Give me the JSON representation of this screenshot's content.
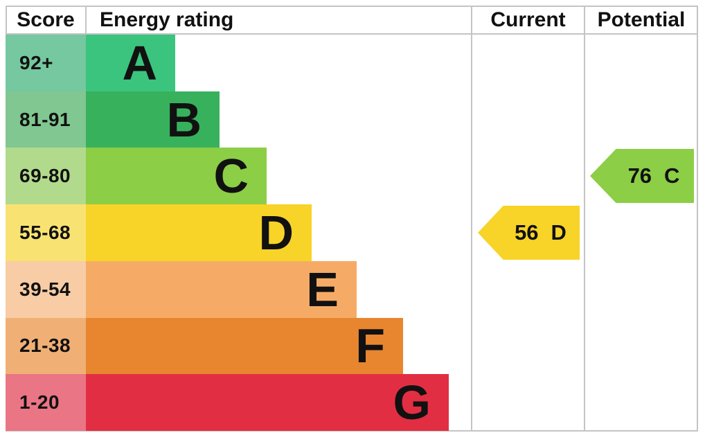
{
  "header": {
    "score_label": "Score",
    "energy_rating_label": "Energy rating",
    "current_label": "Current",
    "potential_label": "Potential"
  },
  "colors": {
    "grid_line": "#c4c4c4",
    "text": "#111111",
    "background": "#ffffff"
  },
  "chart_data": {
    "type": "bar",
    "subtype": "epc-energy-rating-chart",
    "title": "Energy rating",
    "columns": [
      "Score",
      "Energy rating",
      "Current",
      "Potential"
    ],
    "bands": [
      {
        "letter": "A",
        "score_range": "92+",
        "min": 92,
        "bar_color": "#3ac47e",
        "score_bg": "#75c8a0"
      },
      {
        "letter": "B",
        "score_range": "81-91",
        "min": 81,
        "max": 91,
        "bar_color": "#38b15d",
        "score_bg": "#80c791"
      },
      {
        "letter": "C",
        "score_range": "69-80",
        "min": 69,
        "max": 80,
        "bar_color": "#8cce45",
        "score_bg": "#b2da8c"
      },
      {
        "letter": "D",
        "score_range": "55-68",
        "min": 55,
        "max": 68,
        "bar_color": "#f8d328",
        "score_bg": "#f8e372"
      },
      {
        "letter": "E",
        "score_range": "39-54",
        "min": 39,
        "max": 54,
        "bar_color": "#f5ab66",
        "score_bg": "#f8cca4"
      },
      {
        "letter": "F",
        "score_range": "21-38",
        "min": 21,
        "max": 38,
        "bar_color": "#e8862f",
        "score_bg": "#f0b075"
      },
      {
        "letter": "G",
        "score_range": "1-20",
        "min": 1,
        "max": 20,
        "bar_color": "#e22e43",
        "score_bg": "#ea7585"
      }
    ],
    "current": {
      "value": "56",
      "letter": "D",
      "color": "#f8d328"
    },
    "potential": {
      "value": "76",
      "letter": "C",
      "color": "#8cce45"
    },
    "legend_position": "none",
    "grid": "column-dividers-only"
  }
}
